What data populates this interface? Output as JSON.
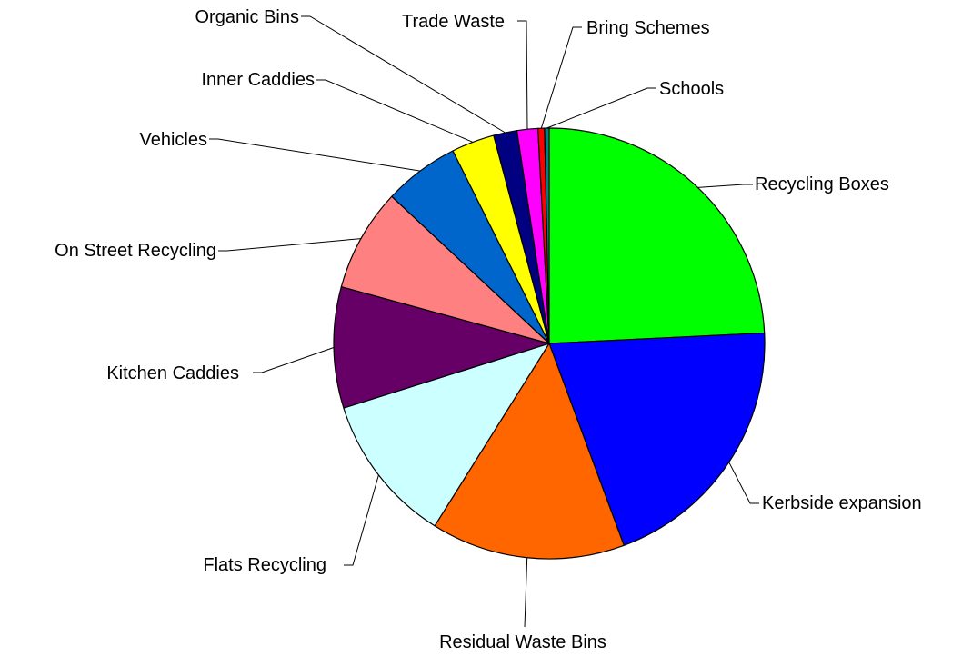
{
  "chart_data": {
    "type": "pie",
    "title": "",
    "start_angle_deg": 0,
    "direction": "clockwise",
    "slices": [
      {
        "label": "Recycling Boxes",
        "value": 24.8,
        "color": "#00FF00"
      },
      {
        "label": "Kerbside expansion",
        "value": 20.6,
        "color": "#0000FF"
      },
      {
        "label": "Residual Waste Bins",
        "value": 14.9,
        "color": "#FF6600"
      },
      {
        "label": "Flats Recycling",
        "value": 11.5,
        "color": "#CCFFFF"
      },
      {
        "label": "Kitchen Caddies",
        "value": 9.3,
        "color": "#660066"
      },
      {
        "label": "On Street Recycling",
        "value": 7.9,
        "color": "#FF8080"
      },
      {
        "label": "Vehicles",
        "value": 5.8,
        "color": "#0066CC"
      },
      {
        "label": "Inner Caddies",
        "value": 3.3,
        "color": "#FFFF00"
      },
      {
        "label": "Organic Bins",
        "value": 1.8,
        "color": "#000080"
      },
      {
        "label": "Trade Waste",
        "value": 1.6,
        "color": "#FF00FF"
      },
      {
        "label": "Bring Schemes",
        "value": 0.5,
        "color": "#FF0000"
      },
      {
        "label": "Schools",
        "value": 0.35,
        "color": "#008080"
      }
    ]
  }
}
